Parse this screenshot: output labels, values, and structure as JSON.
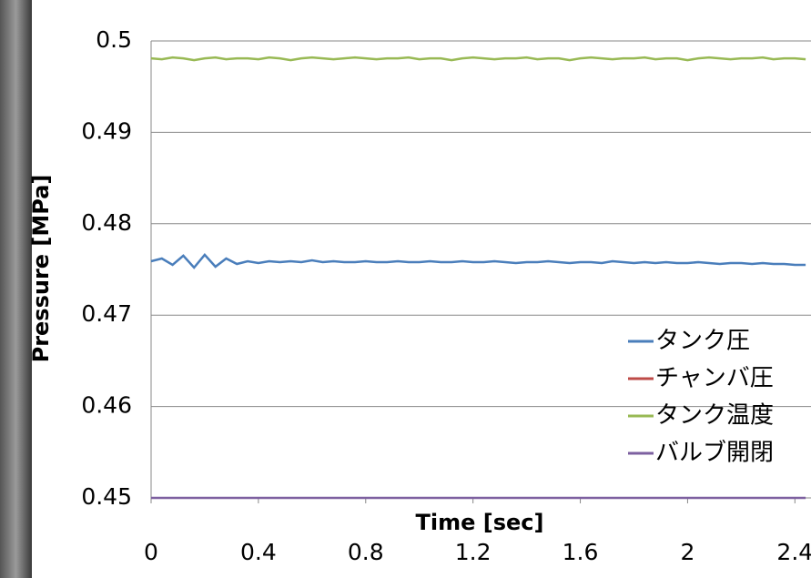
{
  "chart_data": {
    "type": "line",
    "x_label": "Time [sec]",
    "y_label": "Pressure [MPa]",
    "x": [
      0,
      0.04,
      0.08,
      0.12,
      0.16,
      0.2,
      0.24,
      0.28,
      0.32,
      0.36,
      0.4,
      0.44,
      0.48,
      0.52,
      0.56,
      0.6,
      0.64,
      0.68,
      0.72,
      0.76,
      0.8,
      0.84,
      0.88,
      0.92,
      0.96,
      1,
      1.04,
      1.08,
      1.12,
      1.16,
      1.2,
      1.24,
      1.28,
      1.32,
      1.36,
      1.4,
      1.44,
      1.48,
      1.52,
      1.56,
      1.6,
      1.64,
      1.68,
      1.72,
      1.76,
      1.8,
      1.84,
      1.88,
      1.92,
      1.96,
      2,
      2.04,
      2.08,
      2.12,
      2.16,
      2.2,
      2.24,
      2.28,
      2.32,
      2.36,
      2.4,
      2.44
    ],
    "series": [
      {
        "name": "タンク圧",
        "color": "#4a7ebb",
        "values": [
          0.4759,
          0.4762,
          0.4755,
          0.4765,
          0.4752,
          0.4766,
          0.4753,
          0.4762,
          0.4756,
          0.4759,
          0.4757,
          0.4759,
          0.4758,
          0.4759,
          0.4758,
          0.476,
          0.4758,
          0.4759,
          0.4758,
          0.4758,
          0.4759,
          0.4758,
          0.4758,
          0.4759,
          0.4758,
          0.4758,
          0.4759,
          0.4758,
          0.4758,
          0.4759,
          0.4758,
          0.4758,
          0.4759,
          0.4758,
          0.4757,
          0.4758,
          0.4758,
          0.4759,
          0.4758,
          0.4757,
          0.4758,
          0.4758,
          0.4757,
          0.4759,
          0.4758,
          0.4757,
          0.4758,
          0.4757,
          0.4758,
          0.4757,
          0.4757,
          0.4758,
          0.4757,
          0.4756,
          0.4757,
          0.4757,
          0.4756,
          0.4757,
          0.4756,
          0.4756,
          0.4755,
          0.4755
        ]
      },
      {
        "name": "チャンバ圧",
        "color": "#be4b48",
        "values": [
          null,
          null,
          null,
          null,
          null,
          null,
          null,
          null,
          null,
          null,
          null,
          null,
          null,
          null,
          null,
          null,
          null,
          null,
          null,
          null,
          null,
          null,
          null,
          null,
          null,
          null,
          null,
          null,
          null,
          null,
          null,
          null,
          null,
          null,
          null,
          null,
          null,
          null,
          null,
          null,
          null,
          null,
          null,
          null,
          null,
          null,
          null,
          null,
          null,
          null,
          null,
          null,
          null,
          null,
          null,
          null,
          null,
          null,
          null,
          null,
          null,
          null
        ]
      },
      {
        "name": "タンク温度",
        "color": "#98b954",
        "values": [
          0.4981,
          0.498,
          0.4982,
          0.4981,
          0.4979,
          0.4981,
          0.4982,
          0.498,
          0.4981,
          0.4981,
          0.498,
          0.4982,
          0.4981,
          0.4979,
          0.4981,
          0.4982,
          0.4981,
          0.498,
          0.4981,
          0.4982,
          0.4981,
          0.498,
          0.4981,
          0.4981,
          0.4982,
          0.498,
          0.4981,
          0.4981,
          0.4979,
          0.4981,
          0.4982,
          0.4981,
          0.498,
          0.4981,
          0.4981,
          0.4982,
          0.498,
          0.4981,
          0.4981,
          0.4979,
          0.4981,
          0.4982,
          0.4981,
          0.498,
          0.4981,
          0.4981,
          0.4982,
          0.498,
          0.4981,
          0.4981,
          0.4979,
          0.4981,
          0.4982,
          0.4981,
          0.498,
          0.4981,
          0.4981,
          0.4982,
          0.498,
          0.4981,
          0.4981,
          0.498
        ]
      },
      {
        "name": "バルブ開閉",
        "color": "#7d60a0",
        "values": [
          0.45,
          0.45,
          0.45,
          0.45,
          0.45,
          0.45,
          0.45,
          0.45,
          0.45,
          0.45,
          0.45,
          0.45,
          0.45,
          0.45,
          0.45,
          0.45,
          0.45,
          0.45,
          0.45,
          0.45,
          0.45,
          0.45,
          0.45,
          0.45,
          0.45,
          0.45,
          0.45,
          0.45,
          0.45,
          0.45,
          0.45,
          0.45,
          0.45,
          0.45,
          0.45,
          0.45,
          0.45,
          0.45,
          0.45,
          0.45,
          0.45,
          0.45,
          0.45,
          0.45,
          0.45,
          0.45,
          0.45,
          0.45,
          0.45,
          0.45,
          0.45,
          0.45,
          0.45,
          0.45,
          0.45,
          0.45,
          0.45,
          0.45,
          0.45,
          0.45,
          0.45,
          0.45
        ]
      }
    ],
    "xlim": [
      0,
      2.46
    ],
    "xticks": [
      0,
      0.4,
      0.8,
      1.2,
      1.6,
      2,
      2.4
    ],
    "ylim": [
      0.45,
      0.5
    ],
    "yticks": [
      0.45,
      0.46,
      0.47,
      0.48,
      0.49,
      0.5
    ],
    "grid": true,
    "legend": "lower right"
  }
}
